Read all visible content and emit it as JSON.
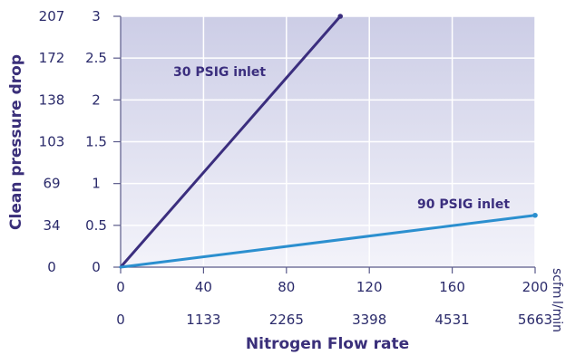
{
  "chart_data": {
    "type": "line",
    "xlabel": "Nitrogen Flow rate",
    "ylabel": "Clean pressure drop",
    "x_units": [
      "scfm",
      "l/min"
    ],
    "xlim": [
      0,
      200
    ],
    "ylim": [
      0,
      3
    ],
    "x_ticks": [
      0,
      40,
      80,
      120,
      160,
      200
    ],
    "x_ticks_secondary": [
      "0",
      "1133",
      "2265",
      "3398",
      "4531",
      "5663"
    ],
    "y_ticks": [
      0,
      0.5,
      1,
      1.5,
      2,
      2.5,
      3
    ],
    "y_ticks_labels": [
      "0",
      "0.5",
      "1",
      "1.5",
      "2",
      "2.5",
      "3"
    ],
    "y_ticks_secondary": [
      "0",
      "34",
      "69",
      "103",
      "138",
      "172",
      "207"
    ],
    "grid": true,
    "series": [
      {
        "name": "30 PSIG inlet",
        "x": [
          0,
          106
        ],
        "y": [
          0,
          3.0
        ],
        "color": "#3b2e7e"
      },
      {
        "name": "90 PSIG inlet",
        "x": [
          0,
          200
        ],
        "y": [
          0,
          0.62
        ],
        "color": "#2b8fcf"
      }
    ],
    "colors": {
      "plot_bg_top": "#cccde6",
      "plot_bg_bottom": "#f3f3fa",
      "grid": "#ffffff",
      "axis": "#5a5a8a"
    }
  }
}
